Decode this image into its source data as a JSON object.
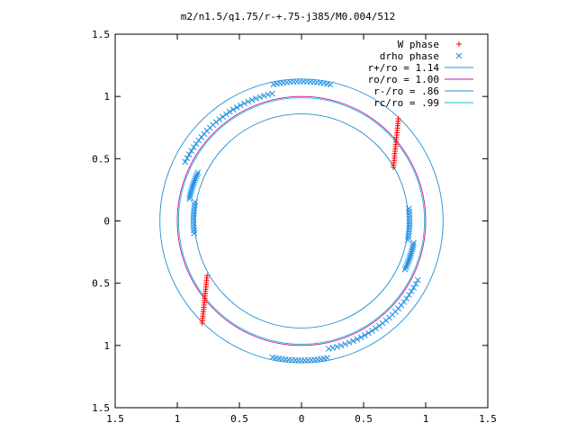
{
  "chart_data": {
    "type": "scatter",
    "title": "m2/n1.5/q1.75/r-+.75-j385/M0.004/512",
    "xlabel": "",
    "ylabel": "",
    "xlim": [
      -1.5,
      1.5
    ],
    "ylim": [
      -1.5,
      1.5
    ],
    "x_tick_values": [
      -1.5,
      -1,
      -0.5,
      0,
      0.5,
      1,
      1.5
    ],
    "x_tick_labels": [
      "1.5",
      "1",
      "0.5",
      "0",
      "0.5",
      "1",
      "1.5"
    ],
    "y_tick_values": [
      1.5,
      1,
      0.5,
      0,
      -0.5,
      -1,
      -1.5
    ],
    "y_tick_labels": [
      "1.5",
      "1",
      "0.5",
      "0",
      "0.5",
      "1",
      "1.5"
    ],
    "grid": false,
    "legend_position": "top-right",
    "circles": [
      {
        "name": "r+/ro = 1.14",
        "radius": 1.14,
        "color": "#1f8fd6"
      },
      {
        "name": "ro/ro = 1.00",
        "radius": 1.0,
        "color": "#c8109b"
      },
      {
        "name": "r-/ro = .86",
        "radius": 0.86,
        "color": "#1f8fd6"
      },
      {
        "name": "rc/ro = .99",
        "radius": 0.99,
        "color": "#17c0d6"
      }
    ],
    "series": [
      {
        "name": "W phase",
        "marker": "plus",
        "color": "#ff0000",
        "segments": [
          {
            "from": [
              0.78,
              0.82
            ],
            "to": [
              0.74,
              0.43
            ]
          },
          {
            "from": [
              -0.76,
              -0.44
            ],
            "to": [
              -0.8,
              -0.82
            ]
          }
        ],
        "points_per_segment": 22
      },
      {
        "name": "drho phase",
        "marker": "cross",
        "color": "#1e8fe6",
        "arcs": [
          {
            "from_deg": 78,
            "to_deg": 103,
            "radius": 1.12,
            "count": 18
          },
          {
            "from_deg": 103,
            "to_deg": 155,
            "radius": 1.05,
            "count": 28
          },
          {
            "from_deg": 155,
            "to_deg": 170,
            "radius": 0.92,
            "count": 14
          },
          {
            "from_deg": 170,
            "to_deg": 188,
            "radius": 0.87,
            "count": 12
          },
          {
            "from_deg": 258,
            "to_deg": 282,
            "radius": 1.12,
            "count": 18
          },
          {
            "from_deg": 282,
            "to_deg": 335,
            "radius": 1.05,
            "count": 28
          },
          {
            "from_deg": 335,
            "to_deg": 350,
            "radius": 0.92,
            "count": 14
          },
          {
            "from_deg": 350,
            "to_deg": 8,
            "radius": 0.87,
            "count": 12
          }
        ]
      }
    ]
  },
  "colors": {
    "axis": "#000000",
    "w_phase": "#ff0000",
    "drho_phase": "#1e8fe6"
  }
}
